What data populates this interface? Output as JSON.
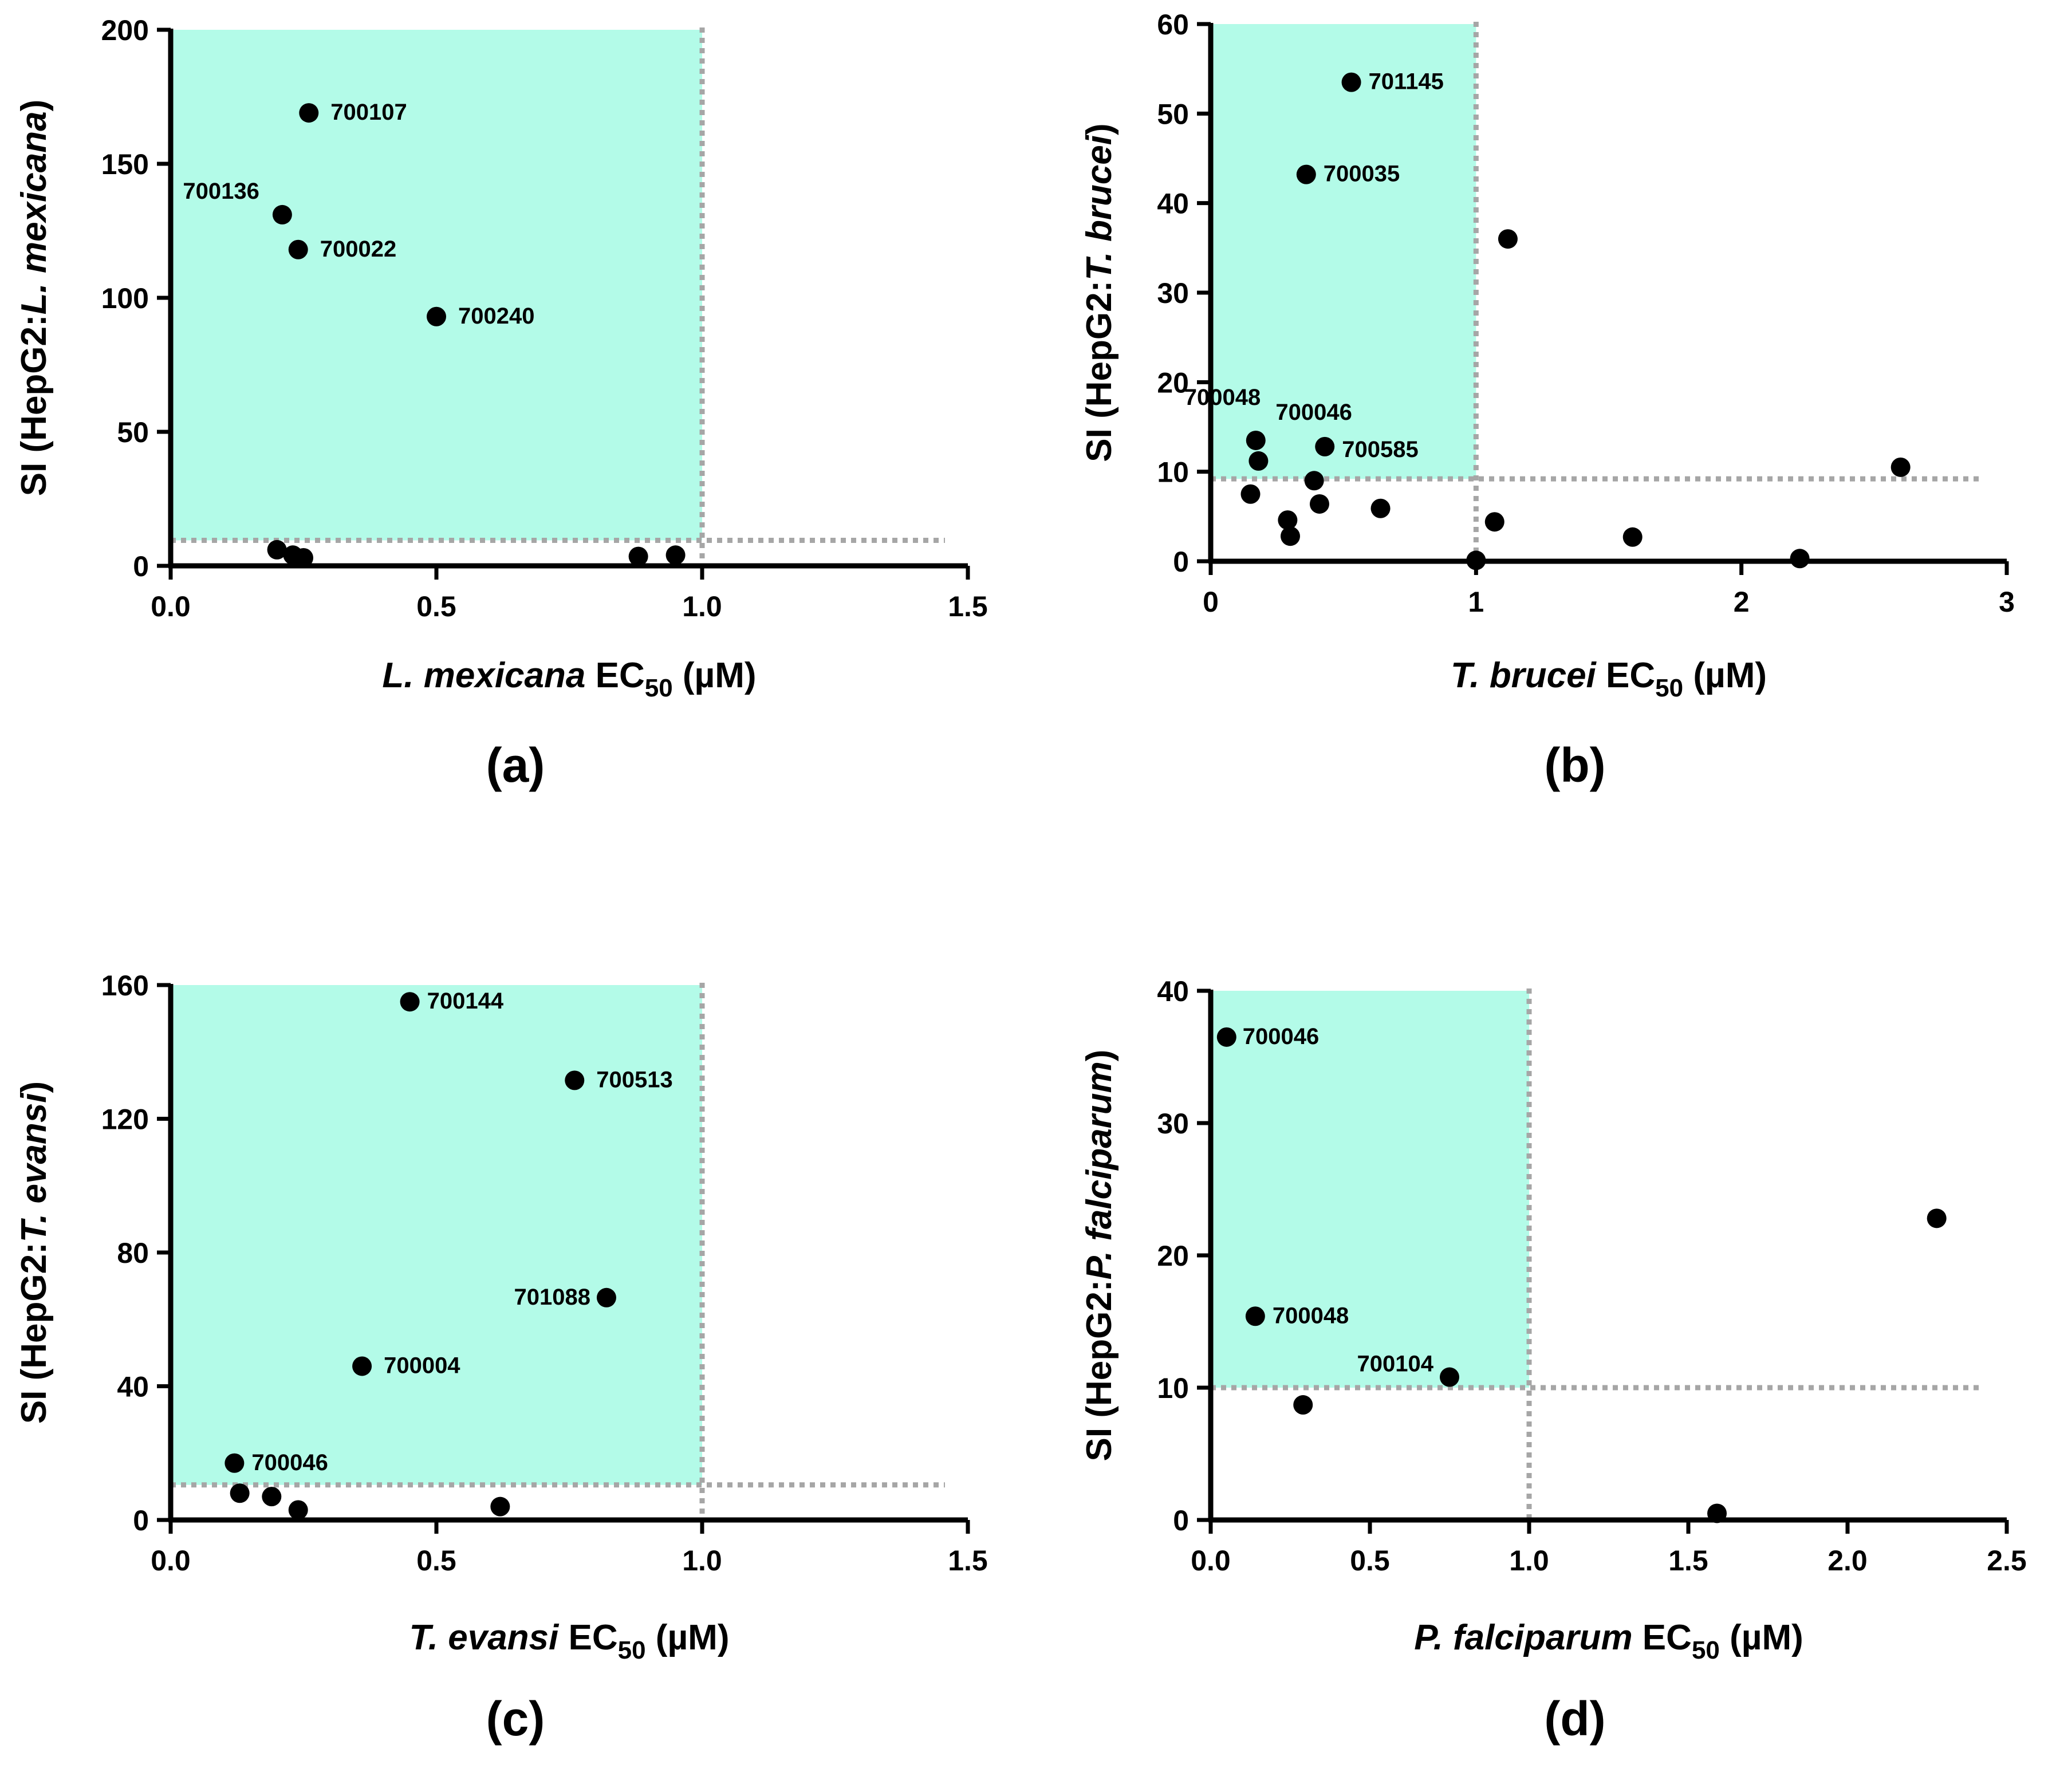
{
  "chart_data": [
    {
      "type": "scatter",
      "panel_label": "(a)",
      "xlabel": {
        "italic": "L. mexicana",
        "main": " EC",
        "sub": "50",
        "unit": " (µM)"
      },
      "ylabel": {
        "plain": "SI (HepG2:",
        "italic": "L. mexicana",
        "close": ")"
      },
      "xlim": [
        0,
        1.5
      ],
      "ylim": [
        0,
        200
      ],
      "xticks": [
        "0.0",
        "0.5",
        "1.0",
        "1.5"
      ],
      "yticks": [
        "0",
        "50",
        "100",
        "150",
        "200"
      ],
      "highlight": {
        "x": [
          0,
          1.0
        ],
        "y": [
          9.5,
          200
        ],
        "color": "#b3fbe8"
      },
      "threshold_x": 1.0,
      "threshold_y": 9.5,
      "points": [
        {
          "x": 0.26,
          "y": 169,
          "label": "700107"
        },
        {
          "x": 0.21,
          "y": 131,
          "label": "700136"
        },
        {
          "x": 0.24,
          "y": 118,
          "label": "700022"
        },
        {
          "x": 0.5,
          "y": 93,
          "label": "700240"
        },
        {
          "x": 0.2,
          "y": 6,
          "label": ""
        },
        {
          "x": 0.23,
          "y": 4,
          "label": ""
        },
        {
          "x": 0.25,
          "y": 3,
          "label": ""
        },
        {
          "x": 0.88,
          "y": 3.5,
          "label": ""
        },
        {
          "x": 0.95,
          "y": 4,
          "label": ""
        }
      ]
    },
    {
      "type": "scatter",
      "panel_label": "(b)",
      "xlabel": {
        "italic": "T. brucei",
        "main": " EC",
        "sub": "50",
        "unit": " (µM)"
      },
      "ylabel": {
        "plain": "SI (HepG2:",
        "italic": "T. brucei",
        "close": ")"
      },
      "xlim": [
        0,
        3
      ],
      "ylim": [
        0,
        60
      ],
      "xticks": [
        "0",
        "1",
        "2",
        "3"
      ],
      "yticks": [
        "0",
        "10",
        "20",
        "30",
        "40",
        "50",
        "60"
      ],
      "highlight": {
        "x": [
          0,
          1.0
        ],
        "y": [
          9.2,
          60
        ],
        "color": "#b3fbe8"
      },
      "threshold_x": 1.0,
      "threshold_y": 9.2,
      "points": [
        {
          "x": 0.53,
          "y": 53.5,
          "label": "701145"
        },
        {
          "x": 0.36,
          "y": 43.2,
          "label": "700035"
        },
        {
          "x": 0.17,
          "y": 13.5,
          "label": "700048"
        },
        {
          "x": 0.18,
          "y": 11.2,
          "label": "700046"
        },
        {
          "x": 0.43,
          "y": 12.8,
          "label": "700585"
        },
        {
          "x": 1.12,
          "y": 36.0,
          "label": ""
        },
        {
          "x": 0.15,
          "y": 7.5,
          "label": ""
        },
        {
          "x": 0.29,
          "y": 4.6,
          "label": ""
        },
        {
          "x": 0.3,
          "y": 2.8,
          "label": ""
        },
        {
          "x": 0.39,
          "y": 9.0,
          "label": ""
        },
        {
          "x": 0.41,
          "y": 6.4,
          "label": ""
        },
        {
          "x": 0.64,
          "y": 5.9,
          "label": ""
        },
        {
          "x": 1.07,
          "y": 4.4,
          "label": ""
        },
        {
          "x": 1.0,
          "y": 0.1,
          "label": ""
        },
        {
          "x": 1.59,
          "y": 2.7,
          "label": ""
        },
        {
          "x": 2.22,
          "y": 0.3,
          "label": ""
        },
        {
          "x": 2.6,
          "y": 10.5,
          "label": ""
        }
      ]
    },
    {
      "type": "scatter",
      "panel_label": "(c)",
      "xlabel": {
        "italic": "T. evansi",
        "main": " EC",
        "sub": "50",
        "unit": " (µM)"
      },
      "ylabel": {
        "plain": "SI (HepG2:",
        "italic": "T. evansi",
        "close": ")"
      },
      "xlim": [
        0,
        1.5
      ],
      "ylim": [
        0,
        160
      ],
      "xticks": [
        "0.0",
        "0.5",
        "1.0",
        "1.5"
      ],
      "yticks": [
        "0",
        "40",
        "80",
        "120",
        "160"
      ],
      "highlight": {
        "x": [
          0,
          1.0
        ],
        "y": [
          10.5,
          160
        ],
        "color": "#b3fbe8"
      },
      "threshold_x": 1.0,
      "threshold_y": 10.5,
      "points": [
        {
          "x": 0.45,
          "y": 155,
          "label": "700144"
        },
        {
          "x": 0.76,
          "y": 131.5,
          "label": "700513"
        },
        {
          "x": 0.82,
          "y": 66.5,
          "label": "701088"
        },
        {
          "x": 0.36,
          "y": 46,
          "label": "700004"
        },
        {
          "x": 0.12,
          "y": 17,
          "label": "700046"
        },
        {
          "x": 0.13,
          "y": 8,
          "label": ""
        },
        {
          "x": 0.19,
          "y": 7,
          "label": ""
        },
        {
          "x": 0.24,
          "y": 3,
          "label": ""
        },
        {
          "x": 0.62,
          "y": 4,
          "label": ""
        }
      ]
    },
    {
      "type": "scatter",
      "panel_label": "(d)",
      "xlabel": {
        "italic": "P. falciparum",
        "main": " EC",
        "sub": "50",
        "unit": " (µM)"
      },
      "ylabel": {
        "plain": "SI (HepG2:",
        "italic": "P. falciparum",
        "close": ")"
      },
      "xlim": [
        0,
        2.5
      ],
      "ylim": [
        0,
        40
      ],
      "xticks": [
        "0.0",
        "0.5",
        "1.0",
        "1.5",
        "2.0",
        "2.5"
      ],
      "yticks": [
        "0",
        "10",
        "20",
        "30",
        "40"
      ],
      "highlight": {
        "x": [
          0,
          1.0
        ],
        "y": [
          10,
          40
        ],
        "color": "#b3fbe8"
      },
      "threshold_x": 1.0,
      "threshold_y": 10,
      "points": [
        {
          "x": 0.05,
          "y": 36.5,
          "label": "700046"
        },
        {
          "x": 0.14,
          "y": 15.4,
          "label": "700048"
        },
        {
          "x": 0.75,
          "y": 10.8,
          "label": "700104"
        },
        {
          "x": 0.29,
          "y": 8.7,
          "label": ""
        },
        {
          "x": 1.59,
          "y": 0.5,
          "label": ""
        },
        {
          "x": 2.28,
          "y": 22.8,
          "label": ""
        }
      ]
    }
  ]
}
